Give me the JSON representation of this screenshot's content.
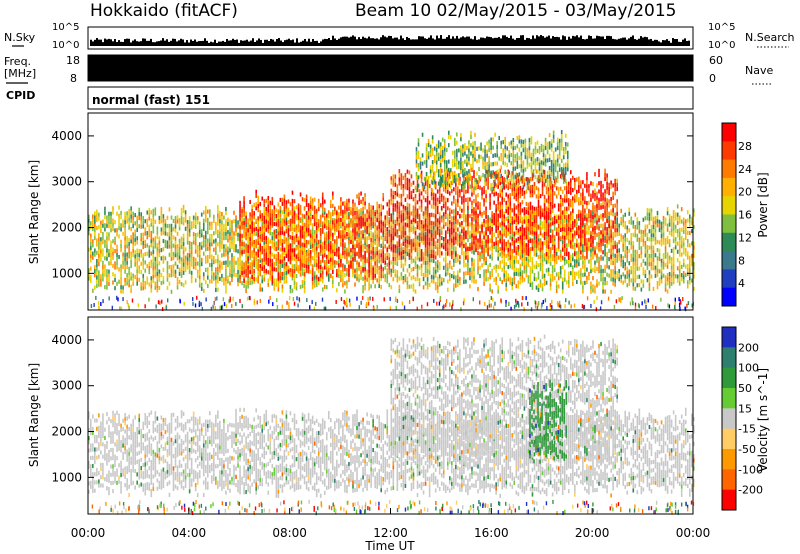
{
  "header": {
    "station": "Hokkaido (fitACF)",
    "beam_date": "Beam 10 02/May/2015 - 03/May/2015"
  },
  "noise_panel": {
    "left_label": "N.Sky",
    "left_ticks": [
      "10^5",
      "10^0"
    ],
    "right_label": "N.Search",
    "right_ticks": [
      "10^5",
      "10^0"
    ]
  },
  "freq_panel": {
    "left_label_line1": "Freq.",
    "left_label_line2": "[MHz]",
    "left_ticks": [
      "18",
      "8"
    ],
    "right_label": "Nave",
    "right_ticks": [
      "60",
      "0"
    ]
  },
  "cpid_panel": {
    "label": "CPID",
    "text": "normal (fast) 151"
  },
  "time_axis": {
    "label": "Time UT",
    "ticks": [
      "00:00",
      "04:00",
      "08:00",
      "12:00",
      "16:00",
      "20:00",
      "00:00"
    ]
  },
  "chart_data": [
    {
      "type": "heatmap",
      "name": "power",
      "ylabel": "Slant Range [km]",
      "x_range_hours": [
        0,
        24
      ],
      "ylim": [
        200,
        4500
      ],
      "yticks": [
        1000,
        2000,
        3000,
        4000
      ],
      "colorbar": {
        "label": "Power [dB]",
        "tick_labels": [
          "28",
          "24",
          "20",
          "16",
          "12",
          "8",
          "4"
        ],
        "tick_values": [
          28,
          24,
          20,
          16,
          12,
          8,
          4
        ],
        "colors": [
          "#ff0000",
          "#ff3a00",
          "#ff7a00",
          "#ffb000",
          "#e6d400",
          "#7fbf3f",
          "#2e8b57",
          "#3a7a8c",
          "#1f3fc0",
          "#0000ff"
        ]
      },
      "bands": [
        {
          "t_start": 0,
          "t_end": 24,
          "r_low": 700,
          "r_high": 2300,
          "level": 0.55
        },
        {
          "t_start": 6,
          "t_end": 12,
          "r_low": 900,
          "r_high": 2600,
          "level": 0.85
        },
        {
          "t_start": 12,
          "t_end": 21,
          "r_low": 1400,
          "r_high": 3100,
          "level": 0.9
        },
        {
          "t_start": 13,
          "t_end": 19,
          "r_low": 2900,
          "r_high": 3900,
          "level": 0.45
        }
      ]
    },
    {
      "type": "heatmap",
      "name": "velocity",
      "ylabel": "Slant Range [km]",
      "x_range_hours": [
        0,
        24
      ],
      "ylim": [
        200,
        4500
      ],
      "yticks": [
        1000,
        2000,
        3000,
        4000
      ],
      "colorbar": {
        "label": "Velocity [m s^-1]",
        "tick_labels": [
          "200",
          "100",
          "50",
          "15",
          "-15",
          "-50",
          "-100",
          "-200"
        ],
        "tick_values": [
          200,
          100,
          50,
          15,
          -15,
          -50,
          -100,
          -200
        ],
        "colors": [
          "#1f2fbf",
          "#2f7f6f",
          "#2e9a3a",
          "#66cc33",
          "#c8c8c8",
          "#ffcc66",
          "#ff9900",
          "#ff6600",
          "#ff0000"
        ]
      },
      "bands": [
        {
          "t_start": 0,
          "t_end": 24,
          "r_low": 700,
          "r_high": 2300,
          "level": 0.0
        },
        {
          "t_start": 12,
          "t_end": 21,
          "r_low": 1400,
          "r_high": 3900,
          "level": 0.1
        },
        {
          "t_start": 17.5,
          "t_end": 19,
          "r_low": 1400,
          "r_high": 3000,
          "level": 0.55
        }
      ]
    }
  ]
}
